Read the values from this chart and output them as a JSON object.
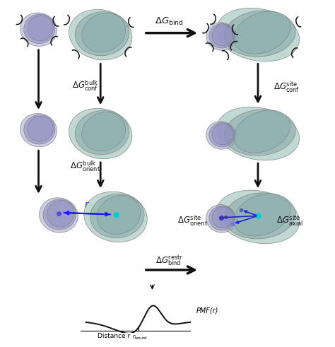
{
  "fig_width": 4.74,
  "fig_height": 4.91,
  "dpi": 100,
  "bg_color": "#ffffff",
  "protein_small_colors": [
    "#b8b8d8",
    "#9090c0"
  ],
  "protein_large_colors": [
    "#a8c8c0",
    "#88aaaa"
  ],
  "arrow_color": "#111111",
  "blue_arrow_color": "#1a1aee",
  "cyan_dot_color": "#00cccc",
  "purple_dot_color": "#5050dd"
}
